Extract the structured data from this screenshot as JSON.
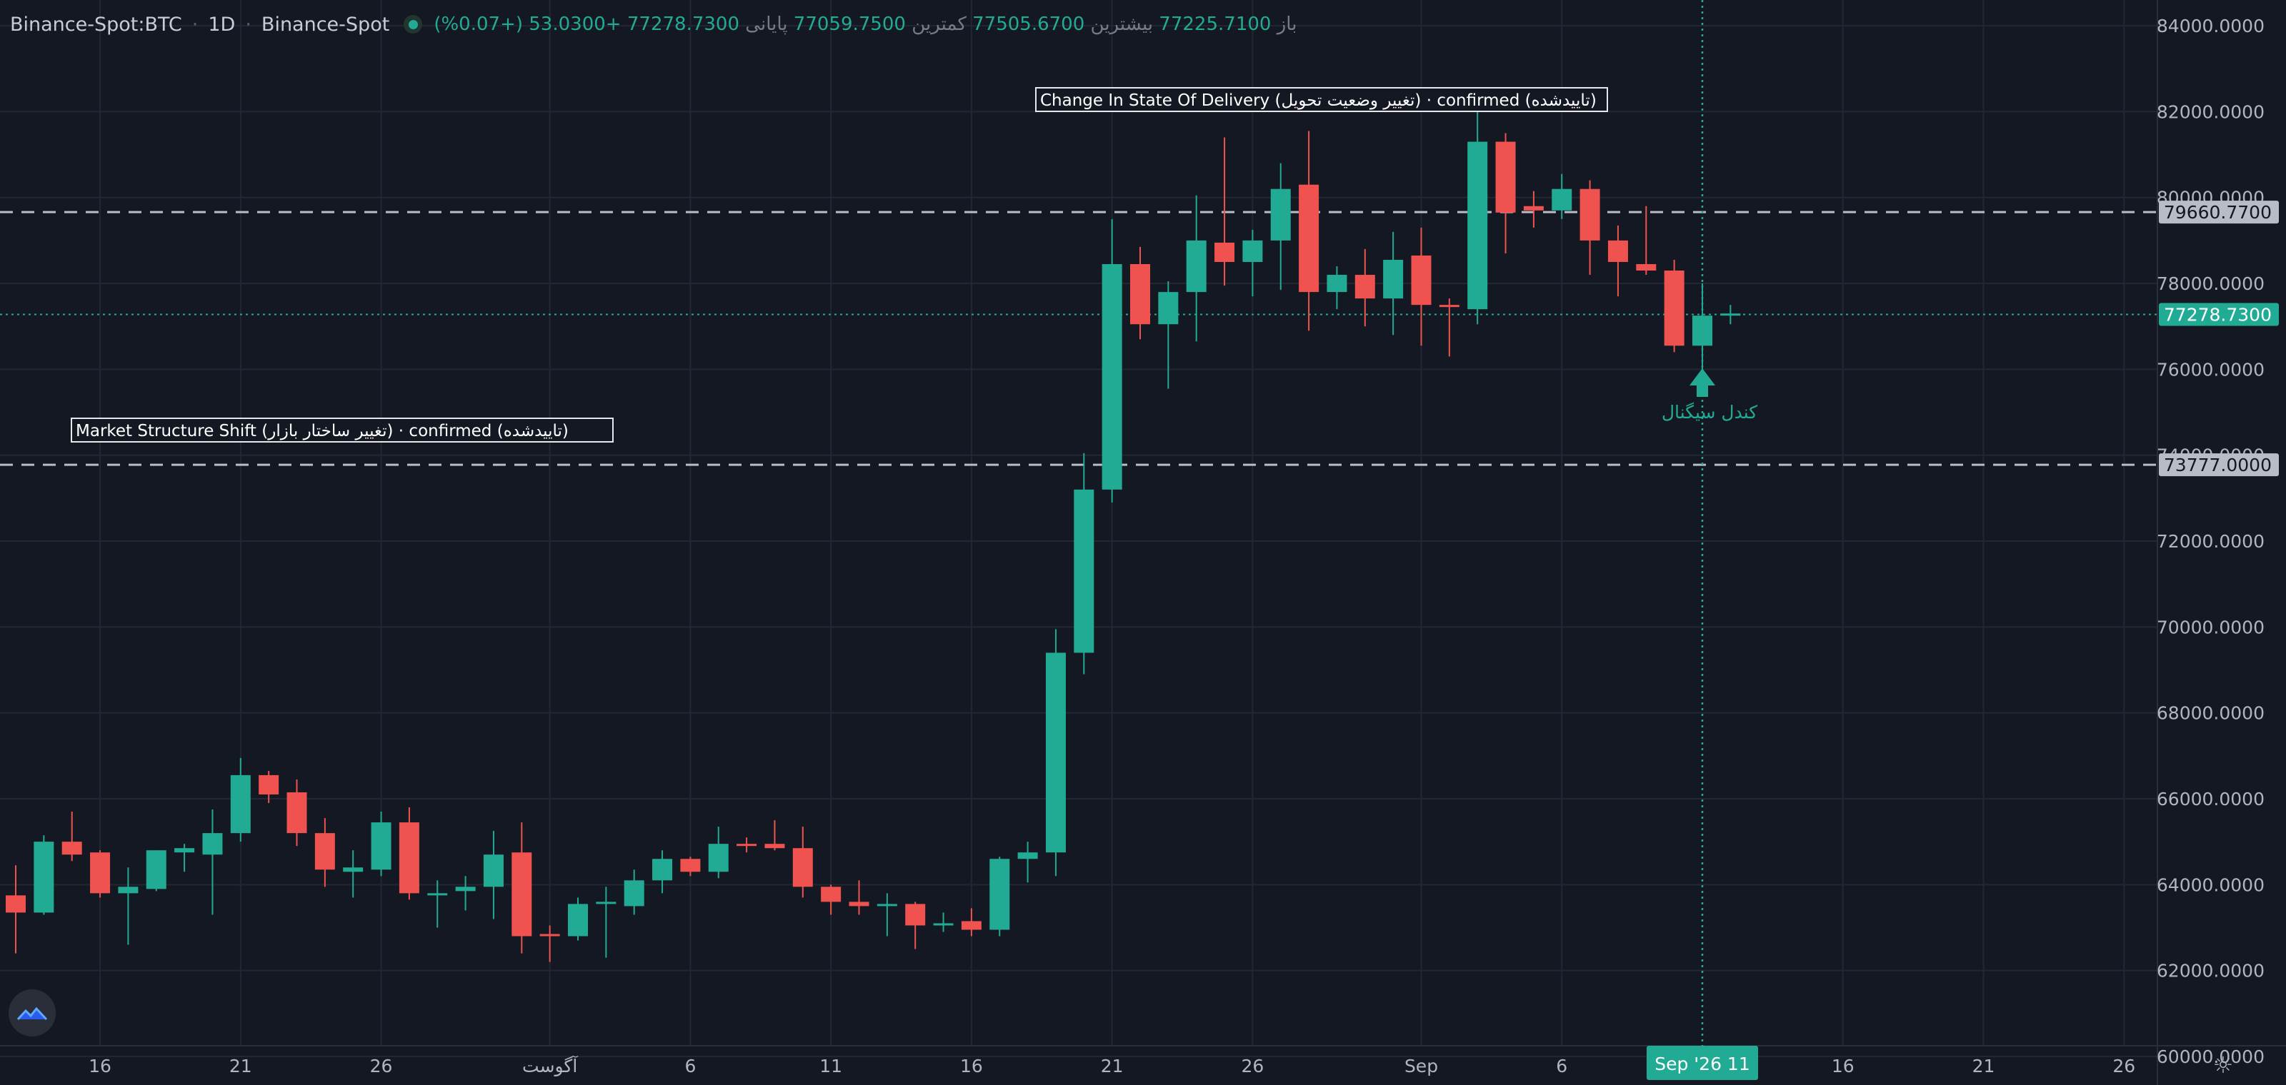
{
  "header": {
    "symbol": "Binance-Spot:BTC",
    "interval": "1D",
    "exchange": "Binance-Spot",
    "open_label": "باز",
    "open": "77225.7100",
    "high_label": "بیشترین",
    "high": "77505.6700",
    "low_label": "کمترین",
    "low": "77059.7500",
    "close_label": "پایانی",
    "close": "77278.7300",
    "change": "+53.0300 (+0.07%)"
  },
  "colors": {
    "background": "#141822",
    "grid": "#232734",
    "up": "#22ab94",
    "down": "#f0524f",
    "axis_text": "#b2b5be",
    "label_gray": "#b9bcc4"
  },
  "icons": [
    "chart-logo-icon",
    "settings-gear-icon",
    "signal-arrow-icon"
  ],
  "chart_data": {
    "type": "candlestick",
    "title": "Binance-Spot:BTC · 1D · Binance-Spot",
    "ylim": [
      59750,
      84600
    ],
    "y_ticks": [
      "84000.0000",
      "82000.0000",
      "80000.0000",
      "78000.0000",
      "76000.0000",
      "74000.0000",
      "72000.0000",
      "70000.0000",
      "68000.0000",
      "66000.0000",
      "64000.0000",
      "62000.0000",
      "60000.0000"
    ],
    "x_ticks": [
      {
        "i": 3,
        "label": "16"
      },
      {
        "i": 8,
        "label": "21"
      },
      {
        "i": 13,
        "label": "26"
      },
      {
        "i": 19,
        "label": "آگوست"
      },
      {
        "i": 24,
        "label": "6"
      },
      {
        "i": 29,
        "label": "11"
      },
      {
        "i": 34,
        "label": "16"
      },
      {
        "i": 39,
        "label": "21"
      },
      {
        "i": 44,
        "label": "26"
      },
      {
        "i": 50,
        "label": "Sep"
      },
      {
        "i": 55,
        "label": "6"
      },
      {
        "i": 65,
        "label": "16"
      },
      {
        "i": 70,
        "label": "21"
      },
      {
        "i": 75,
        "label": "26"
      }
    ],
    "candles": [
      [
        63750,
        63350,
        64450,
        62400
      ],
      [
        63350,
        65000,
        65150,
        63300
      ],
      [
        65000,
        64700,
        65700,
        64550
      ],
      [
        64750,
        63800,
        64800,
        63700
      ],
      [
        63800,
        63950,
        64400,
        62600
      ],
      [
        63900,
        64800,
        64800,
        63850
      ],
      [
        64750,
        64850,
        64950,
        64300
      ],
      [
        64700,
        65200,
        65750,
        63300
      ],
      [
        65200,
        66550,
        66950,
        65000
      ],
      [
        66550,
        66100,
        66650,
        65900
      ],
      [
        66150,
        65200,
        66450,
        64900
      ],
      [
        65200,
        64350,
        65550,
        63950
      ],
      [
        64300,
        64400,
        64800,
        63700
      ],
      [
        64350,
        65450,
        65700,
        64200
      ],
      [
        65450,
        63800,
        65800,
        63650
      ],
      [
        63800,
        63800,
        64100,
        63000
      ],
      [
        63850,
        63950,
        64200,
        63400
      ],
      [
        63950,
        64700,
        65250,
        63200
      ],
      [
        64750,
        62800,
        65450,
        62400
      ],
      [
        62850,
        62800,
        63050,
        62200
      ],
      [
        62800,
        63550,
        63700,
        62700
      ],
      [
        63550,
        63600,
        63950,
        62300
      ],
      [
        63500,
        64100,
        64350,
        63300
      ],
      [
        64100,
        64600,
        64800,
        63800
      ],
      [
        64600,
        64300,
        64650,
        64200
      ],
      [
        64300,
        64950,
        65350,
        64150
      ],
      [
        64950,
        64900,
        65100,
        64750
      ],
      [
        64950,
        64850,
        65500,
        64800
      ],
      [
        64850,
        63950,
        65350,
        63700
      ],
      [
        63950,
        63600,
        64000,
        63300
      ],
      [
        63600,
        63500,
        64100,
        63300
      ],
      [
        63500,
        63550,
        63800,
        62800
      ],
      [
        63550,
        63050,
        63600,
        62500
      ],
      [
        63050,
        63100,
        63350,
        62900
      ],
      [
        63150,
        62950,
        63450,
        62800
      ],
      [
        62950,
        64600,
        64650,
        62800
      ],
      [
        64600,
        64750,
        65000,
        64050
      ],
      [
        64750,
        69400,
        69950,
        64200
      ],
      [
        69400,
        73200,
        74050,
        68900
      ],
      [
        73200,
        78450,
        79500,
        72900
      ],
      [
        78450,
        77050,
        78850,
        76700
      ],
      [
        77050,
        77800,
        78050,
        75550
      ],
      [
        77800,
        79000,
        80050,
        76650
      ],
      [
        78950,
        78500,
        81400,
        77950
      ],
      [
        78500,
        79000,
        79250,
        77700
      ],
      [
        79000,
        80200,
        80800,
        77850
      ],
      [
        80300,
        77800,
        81550,
        76900
      ],
      [
        77800,
        78200,
        78400,
        77400
      ],
      [
        78200,
        77650,
        78800,
        77000
      ],
      [
        77650,
        78550,
        79200,
        76800
      ],
      [
        78650,
        77500,
        79300,
        76550
      ],
      [
        77500,
        77450,
        77650,
        76300
      ],
      [
        77400,
        81300,
        82150,
        77050
      ],
      [
        81300,
        79650,
        81500,
        78700
      ],
      [
        79800,
        79700,
        80150,
        79300
      ],
      [
        79700,
        80200,
        80550,
        79500
      ],
      [
        80200,
        79000,
        80400,
        78200
      ],
      [
        79000,
        78500,
        79350,
        77700
      ],
      [
        78450,
        78300,
        79800,
        78200
      ],
      [
        78300,
        76550,
        78550,
        76400
      ],
      [
        76550,
        77250,
        78000,
        75500
      ],
      [
        77250,
        77300,
        77500,
        77050
      ]
    ],
    "price_lines": [
      {
        "value": 79660.77,
        "label": "79660.7700",
        "style": "dashed",
        "color": "#b9bcc4",
        "text_color": "#131722"
      },
      {
        "value": 73777.0,
        "label": "73777.0000",
        "style": "dashed",
        "color": "#b9bcc4",
        "text_color": "#131722"
      },
      {
        "value": 77278.73,
        "label": "77278.7300",
        "style": "dotted",
        "color": "#22ab94",
        "text_color": "#ffffff"
      }
    ],
    "annotations": [
      {
        "i": 46,
        "value": 81950,
        "text": "Change In State Of Delivery (تغییر وضعیت تحویل) · confirmed (تاییدشده)"
      },
      {
        "i": 11,
        "value": 74500,
        "text": "Market Structure Shift (تغییر ساختار بازار) · confirmed (تاییدشده)"
      }
    ],
    "signal": {
      "i": 60,
      "text": "کندل سیگنال"
    },
    "crosshair": {
      "i": 60,
      "date_label": "Sep '26 11"
    }
  }
}
